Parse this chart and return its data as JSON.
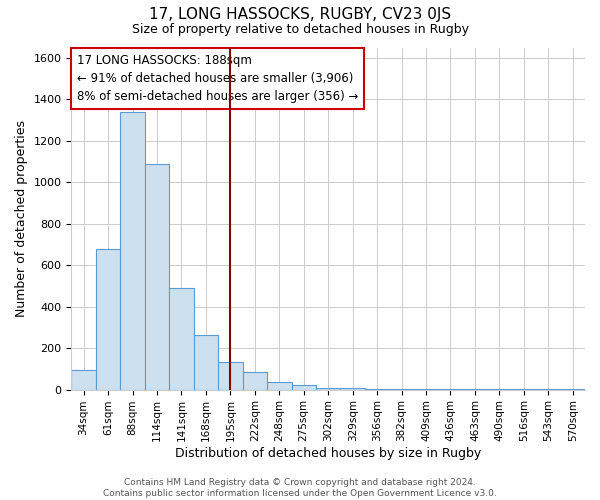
{
  "title1": "17, LONG HASSOCKS, RUGBY, CV23 0JS",
  "title2": "Size of property relative to detached houses in Rugby",
  "xlabel": "Distribution of detached houses by size in Rugby",
  "ylabel": "Number of detached properties",
  "categories": [
    "34sqm",
    "61sqm",
    "88sqm",
    "114sqm",
    "141sqm",
    "168sqm",
    "195sqm",
    "222sqm",
    "248sqm",
    "275sqm",
    "302sqm",
    "329sqm",
    "356sqm",
    "382sqm",
    "409sqm",
    "436sqm",
    "463sqm",
    "490sqm",
    "516sqm",
    "543sqm",
    "570sqm"
  ],
  "values": [
    95,
    680,
    1340,
    1090,
    490,
    265,
    135,
    85,
    35,
    20,
    10,
    8,
    5,
    4,
    3,
    2,
    2,
    1,
    1,
    1,
    1
  ],
  "bar_color": "#cce0f0",
  "bar_edge_color": "#5b9bd5",
  "annotation_line1": "17 LONG HASSOCKS: 188sqm",
  "annotation_line2": "← 91% of detached houses are smaller (3,906)",
  "annotation_line3": "8% of semi-detached houses are larger (356) →",
  "annotation_box_color": "white",
  "annotation_box_edge_color": "#cc0000",
  "vline_color": "#8b0000",
  "vline_x": 6.0,
  "ylim": [
    0,
    1650
  ],
  "yticks": [
    0,
    200,
    400,
    600,
    800,
    1000,
    1200,
    1400,
    1600
  ],
  "footer": "Contains HM Land Registry data © Crown copyright and database right 2024.\nContains public sector information licensed under the Open Government Licence v3.0.",
  "figsize": [
    6.0,
    5.0
  ],
  "dpi": 100
}
